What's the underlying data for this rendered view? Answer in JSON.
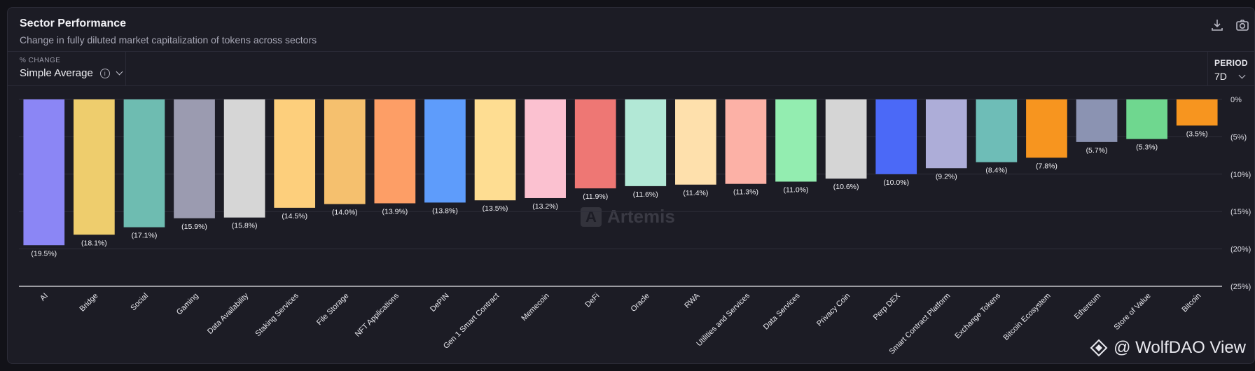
{
  "header": {
    "title": "Sector Performance",
    "subtitle": "Change in fully diluted market capitalization of tokens across sectors",
    "icons": [
      "download-icon",
      "camera-icon"
    ]
  },
  "controls": {
    "metric_label": "% CHANGE",
    "metric_value": "Simple Average",
    "period_label": "PERIOD",
    "period_value": "7D"
  },
  "watermarks": {
    "center": "Artemis",
    "corner": "@ WolfDAO View"
  },
  "chart_data": {
    "type": "bar",
    "categories": [
      "AI",
      "Bridge",
      "Social",
      "Gaming",
      "Data Availability",
      "Staking Services",
      "File Storage",
      "NFT Applications",
      "DePIN",
      "Gen 1 Smart Contract",
      "Memecoin",
      "DeFi",
      "Oracle",
      "RWA",
      "Utilities and Services",
      "Data Services",
      "Privacy Coin",
      "Perp DEX",
      "Smart Contract Platform",
      "Exchange Tokens",
      "Bitcoin Ecosystem",
      "Ethereum",
      "Store of Value",
      "Bitcoin"
    ],
    "values": [
      -19.5,
      -18.1,
      -17.1,
      -15.9,
      -15.8,
      -14.5,
      -14.0,
      -13.9,
      -13.8,
      -13.5,
      -13.2,
      -11.9,
      -11.6,
      -11.4,
      -11.3,
      -11.0,
      -10.6,
      -10.0,
      -9.2,
      -8.4,
      -7.8,
      -5.7,
      -5.3,
      -3.5
    ],
    "data_labels": [
      "(19.5%)",
      "(18.1%)",
      "(17.1%)",
      "(15.9%)",
      "(15.8%)",
      "(14.5%)",
      "(14.0%)",
      "(13.9%)",
      "(13.8%)",
      "(13.5%)",
      "(13.2%)",
      "(11.9%)",
      "(11.6%)",
      "(11.4%)",
      "(11.3%)",
      "(11.0%)",
      "(10.6%)",
      "(10.0%)",
      "(9.2%)",
      "(8.4%)",
      "(7.8%)",
      "(5.7%)",
      "(5.3%)",
      "(3.5%)"
    ],
    "colors": [
      "#8b86f5",
      "#eecd6d",
      "#6ebcb1",
      "#9b9bb0",
      "#d6d6d6",
      "#fdcf7c",
      "#f5c06e",
      "#fd9e66",
      "#5e9cfb",
      "#fedd92",
      "#fbc1d0",
      "#ee7774",
      "#b2e8d6",
      "#fee0ac",
      "#fcb1a6",
      "#93edb0",
      "#d5d5d5",
      "#4b69f7",
      "#adadd8",
      "#6ebdb7",
      "#f7951f",
      "#8b93b2",
      "#6fd78f",
      "#f7951f"
    ],
    "ylim": [
      -25,
      0
    ],
    "y_ticks": [
      0,
      -5,
      -10,
      -15,
      -20,
      -25
    ],
    "y_tick_labels": [
      "0%",
      "(5%)",
      "(10%)",
      "(15%)",
      "(20%)",
      "(25%)"
    ],
    "ylabel": "",
    "xlabel": "",
    "grid": true
  }
}
